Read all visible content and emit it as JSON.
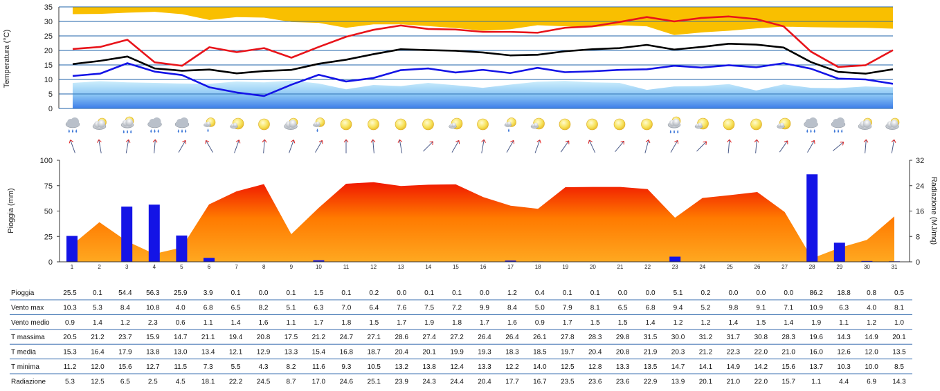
{
  "chart_data": [
    {
      "type": "line",
      "ylabel": "Temperatura (°C)",
      "ylim": [
        0,
        35
      ],
      "yticks": [
        "0",
        "5",
        "10",
        "15",
        "20",
        "25",
        "30",
        "35"
      ],
      "days": [
        1,
        2,
        3,
        4,
        5,
        6,
        7,
        8,
        9,
        10,
        11,
        12,
        13,
        14,
        15,
        16,
        17,
        18,
        19,
        20,
        21,
        22,
        23,
        24,
        25,
        26,
        27,
        28,
        29,
        30,
        31
      ],
      "series": [
        {
          "role": "massima",
          "color": "#e8141a",
          "values": [
            20.5,
            21.2,
            23.7,
            15.9,
            14.7,
            21.1,
            19.4,
            20.8,
            17.5,
            21.2,
            24.7,
            27.1,
            28.6,
            27.4,
            27.2,
            26.4,
            26.4,
            26.1,
            27.8,
            28.3,
            29.8,
            31.5,
            30.0,
            31.2,
            31.7,
            30.8,
            28.3,
            19.6,
            14.3,
            14.9,
            20.1
          ]
        },
        {
          "role": "media",
          "color": "#000000",
          "values": [
            15.3,
            16.4,
            17.9,
            13.8,
            13.0,
            13.4,
            12.1,
            12.9,
            13.3,
            15.4,
            16.8,
            18.7,
            20.4,
            20.1,
            19.9,
            19.3,
            18.3,
            18.5,
            19.7,
            20.4,
            20.8,
            21.9,
            20.3,
            21.2,
            22.3,
            22.0,
            21.0,
            16.0,
            12.6,
            12.0,
            13.5
          ]
        },
        {
          "role": "minima",
          "color": "#1414e6",
          "values": [
            11.2,
            12.0,
            15.6,
            12.7,
            11.5,
            7.3,
            5.5,
            4.3,
            8.2,
            11.6,
            9.3,
            10.5,
            13.2,
            13.8,
            12.4,
            13.3,
            12.2,
            14.0,
            12.5,
            12.8,
            13.3,
            13.5,
            14.7,
            14.1,
            14.9,
            14.2,
            15.6,
            13.7,
            10.3,
            10.0,
            8.5
          ]
        }
      ],
      "upper_band": [
        32.5,
        32.6,
        33.0,
        33.3,
        32.5,
        30.5,
        31.5,
        31.3,
        29.8,
        29.5,
        27.8,
        29.0,
        29.0,
        28.4,
        27.7,
        26.8,
        27.3,
        28.7,
        28.3,
        28.0,
        28.7,
        28.3,
        25.3,
        26.2,
        26.8,
        27.6,
        28.2,
        28.0,
        27.9,
        27.8,
        27.5
      ],
      "lower_band": [
        8.8,
        9.4,
        9.0,
        8.8,
        8.6,
        8.5,
        9.3,
        9.0,
        9.6,
        8.6,
        6.6,
        8.1,
        7.7,
        8.8,
        8.0,
        7.1,
        8.2,
        9.2,
        9.5,
        9.0,
        8.8,
        6.4,
        7.6,
        7.7,
        8.4,
        6.2,
        8.3,
        7.1,
        7.0,
        7.6,
        7.3
      ],
      "grid": true
    },
    {
      "type": "bar",
      "ylabel": "Pioggia (mm)",
      "y2label": "Radiazione (MJ/mq)",
      "ylim": [
        0,
        100
      ],
      "y2lim": [
        0,
        32
      ],
      "yticks": [
        "0",
        "25",
        "50",
        "75",
        "100"
      ],
      "y2ticks": [
        "0",
        "8",
        "16",
        "24",
        "32"
      ],
      "categories": [
        "1",
        "2",
        "3",
        "4",
        "5",
        "6",
        "7",
        "8",
        "9",
        "10",
        "11",
        "12",
        "13",
        "14",
        "15",
        "16",
        "17",
        "18",
        "19",
        "20",
        "21",
        "22",
        "23",
        "24",
        "25",
        "26",
        "27",
        "28",
        "29",
        "30",
        "31"
      ],
      "series": [
        {
          "role": "pioggia",
          "color": "#1414e6",
          "values": [
            25.5,
            0.1,
            54.4,
            56.3,
            25.9,
            3.9,
            0.1,
            0.0,
            0.1,
            1.5,
            0.1,
            0.2,
            0.0,
            0.1,
            0.1,
            0.0,
            1.2,
            0.4,
            0.1,
            0.1,
            0.0,
            0.0,
            5.1,
            0.2,
            0.0,
            0.0,
            0.0,
            86.2,
            18.8,
            0.8,
            0.5
          ]
        },
        {
          "role": "radiazione",
          "type": "area",
          "color": "#ff7a00",
          "values": [
            5.3,
            12.5,
            6.5,
            2.5,
            4.5,
            18.1,
            22.2,
            24.5,
            8.7,
            17.0,
            24.6,
            25.1,
            23.9,
            24.3,
            24.4,
            20.4,
            17.7,
            16.7,
            23.5,
            23.6,
            23.6,
            22.9,
            13.9,
            20.1,
            21.0,
            22.0,
            15.7,
            1.1,
            4.4,
            6.9,
            14.3
          ]
        }
      ]
    }
  ],
  "weather": {
    "icons": [
      "rain-cloud",
      "cloud-sun",
      "sun-cloud-rain",
      "rain-cloud",
      "rain-cloud",
      "sun-drops",
      "sun-cloud",
      "sun",
      "cloud-sun",
      "sun-drops",
      "sun",
      "sun",
      "sun",
      "sun",
      "sun-cloud",
      "sun",
      "sun-drops",
      "sun-cloud",
      "sun",
      "sun",
      "sun",
      "sun",
      "sun-cloud-rain",
      "sun-cloud",
      "sun",
      "sun",
      "sun-cloud",
      "rain-cloud",
      "rain-cloud",
      "cloud-sun",
      "cloud-sun"
    ],
    "wind_dir_deg": [
      250,
      260,
      280,
      275,
      300,
      240,
      290,
      275,
      290,
      300,
      270,
      265,
      260,
      315,
      300,
      280,
      300,
      290,
      305,
      245,
      310,
      285,
      300,
      315,
      275,
      275,
      305,
      300,
      320,
      275,
      280
    ]
  },
  "table": {
    "rows": [
      {
        "label": "Pioggia",
        "values": [
          "25.5",
          "0.1",
          "54.4",
          "56.3",
          "25.9",
          "3.9",
          "0.1",
          "0.0",
          "0.1",
          "1.5",
          "0.1",
          "0.2",
          "0.0",
          "0.1",
          "0.1",
          "0.0",
          "1.2",
          "0.4",
          "0.1",
          "0.1",
          "0.0",
          "0.0",
          "5.1",
          "0.2",
          "0.0",
          "0.0",
          "0.0",
          "86.2",
          "18.8",
          "0.8",
          "0.5"
        ]
      },
      {
        "label": "Vento max",
        "values": [
          "10.3",
          "5.3",
          "8.4",
          "10.8",
          "4.0",
          "6.8",
          "6.5",
          "8.2",
          "5.1",
          "6.3",
          "7.0",
          "6.4",
          "7.6",
          "7.5",
          "7.2",
          "9.9",
          "8.4",
          "5.0",
          "7.9",
          "8.1",
          "6.5",
          "6.8",
          "9.4",
          "5.2",
          "9.8",
          "9.1",
          "7.1",
          "10.9",
          "6.3",
          "4.0",
          "8.1"
        ]
      },
      {
        "label": "Vento medio",
        "values": [
          "0.9",
          "1.4",
          "1.2",
          "2.3",
          "0.6",
          "1.1",
          "1.4",
          "1.6",
          "1.1",
          "1.7",
          "1.8",
          "1.5",
          "1.7",
          "1.9",
          "1.8",
          "1.7",
          "1.6",
          "0.9",
          "1.7",
          "1.5",
          "1.5",
          "1.4",
          "1.2",
          "1.2",
          "1.4",
          "1.5",
          "1.4",
          "1.9",
          "1.1",
          "1.2",
          "1.0"
        ]
      },
      {
        "label": "T massima",
        "values": [
          "20.5",
          "21.2",
          "23.7",
          "15.9",
          "14.7",
          "21.1",
          "19.4",
          "20.8",
          "17.5",
          "21.2",
          "24.7",
          "27.1",
          "28.6",
          "27.4",
          "27.2",
          "26.4",
          "26.4",
          "26.1",
          "27.8",
          "28.3",
          "29.8",
          "31.5",
          "30.0",
          "31.2",
          "31.7",
          "30.8",
          "28.3",
          "19.6",
          "14.3",
          "14.9",
          "20.1"
        ]
      },
      {
        "label": "T media",
        "values": [
          "15.3",
          "16.4",
          "17.9",
          "13.8",
          "13.0",
          "13.4",
          "12.1",
          "12.9",
          "13.3",
          "15.4",
          "16.8",
          "18.7",
          "20.4",
          "20.1",
          "19.9",
          "19.3",
          "18.3",
          "18.5",
          "19.7",
          "20.4",
          "20.8",
          "21.9",
          "20.3",
          "21.2",
          "22.3",
          "22.0",
          "21.0",
          "16.0",
          "12.6",
          "12.0",
          "13.5"
        ]
      },
      {
        "label": "T minima",
        "values": [
          "11.2",
          "12.0",
          "15.6",
          "12.7",
          "11.5",
          "7.3",
          "5.5",
          "4.3",
          "8.2",
          "11.6",
          "9.3",
          "10.5",
          "13.2",
          "13.8",
          "12.4",
          "13.3",
          "12.2",
          "14.0",
          "12.5",
          "12.8",
          "13.3",
          "13.5",
          "14.7",
          "14.1",
          "14.9",
          "14.2",
          "15.6",
          "13.7",
          "10.3",
          "10.0",
          "8.5"
        ]
      },
      {
        "label": "Radiazione",
        "values": [
          "5.3",
          "12.5",
          "6.5",
          "2.5",
          "4.5",
          "18.1",
          "22.2",
          "24.5",
          "8.7",
          "17.0",
          "24.6",
          "25.1",
          "23.9",
          "24.3",
          "24.4",
          "20.4",
          "17.7",
          "16.7",
          "23.5",
          "23.6",
          "23.6",
          "22.9",
          "13.9",
          "20.1",
          "21.0",
          "22.0",
          "15.7",
          "1.1",
          "4.4",
          "6.9",
          "14.3"
        ]
      }
    ]
  }
}
